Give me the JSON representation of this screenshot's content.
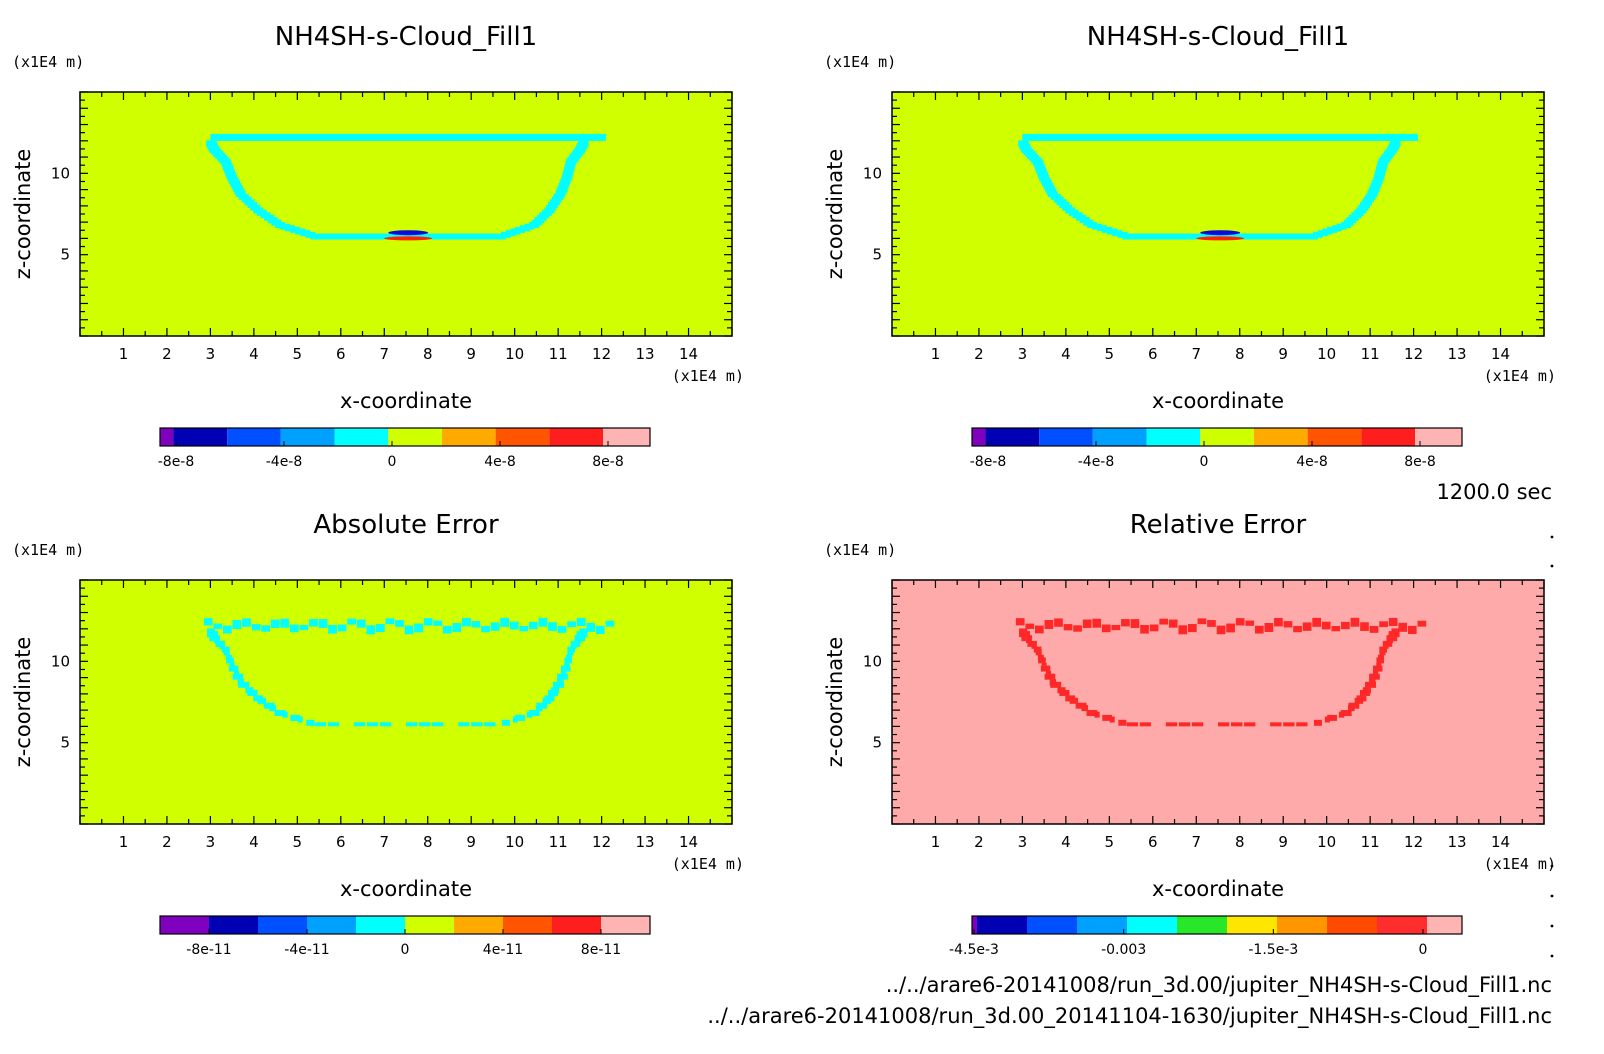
{
  "colors": {
    "field_zero": "#d0ff00",
    "ring": "#00ffff",
    "relative_bg": "#ffaaaa",
    "relative_ring": "#ff2828",
    "neg_core": "#0a0ad8",
    "pos_core": "#ff2200"
  },
  "footer": {
    "time": "1200.0 sec",
    "file1": "../../arare6-20141008/run_3d.00/jupiter_NH4SH-s-Cloud_Fill1.nc",
    "file2": "../../arare6-20141008/run_3d.00_20141104-1630/jupiter_NH4SH-s-Cloud_Fill1.nc"
  },
  "chart_data": [
    {
      "type": "heatmap",
      "title": "NH4SH-s-Cloud_Fill1",
      "xlabel": "x-coordinate",
      "ylabel": "z-coordinate",
      "x_unit": "(x1E4 m)",
      "z_unit": "(x1E4 m)",
      "xlim": [
        0,
        15
      ],
      "ylim": [
        0,
        15
      ],
      "x_ticks": [
        1,
        2,
        3,
        4,
        5,
        6,
        7,
        8,
        9,
        10,
        11,
        12,
        13,
        14
      ],
      "y_ticks": [
        5,
        10
      ],
      "background_value": 0,
      "feature": "anvil-shaped cloud outline between x=3 and x=12, z=6.2 to z=12.3, with small negative/positive pair near x=7.5, z=6",
      "colorbar": {
        "colors": [
          "#8000c0",
          "#0000b4",
          "#0050ff",
          "#00a0ff",
          "#00ffff",
          "#d0ff00",
          "#ffaa00",
          "#ff5500",
          "#ff1e1e",
          "#ffb4b4"
        ],
        "widths": [
          1,
          4,
          4,
          4,
          4,
          4,
          4,
          4,
          4,
          3.5
        ],
        "tick_labels": [
          "-8e-8",
          "-4e-8",
          "0",
          "4e-8",
          "8e-8"
        ],
        "tick_positions": [
          -8e-08,
          -4e-08,
          0,
          4e-08,
          8e-08
        ]
      }
    },
    {
      "type": "heatmap",
      "title": "NH4SH-s-Cloud_Fill1",
      "xlabel": "x-coordinate",
      "ylabel": "z-coordinate",
      "x_unit": "(x1E4 m)",
      "z_unit": "(x1E4 m)",
      "xlim": [
        0,
        15
      ],
      "ylim": [
        0,
        15
      ],
      "x_ticks": [
        1,
        2,
        3,
        4,
        5,
        6,
        7,
        8,
        9,
        10,
        11,
        12,
        13,
        14
      ],
      "y_ticks": [
        5,
        10
      ],
      "background_value": 0,
      "feature": "identical to the first panel",
      "colorbar": {
        "colors": [
          "#8000c0",
          "#0000b4",
          "#0050ff",
          "#00a0ff",
          "#00ffff",
          "#d0ff00",
          "#ffaa00",
          "#ff5500",
          "#ff1e1e",
          "#ffb4b4"
        ],
        "widths": [
          1,
          4,
          4,
          4,
          4,
          4,
          4,
          4,
          4,
          3.5
        ],
        "tick_labels": [
          "-8e-8",
          "-4e-8",
          "0",
          "4e-8",
          "8e-8"
        ],
        "tick_positions": [
          -8e-08,
          -4e-08,
          0,
          4e-08,
          8e-08
        ]
      }
    },
    {
      "type": "heatmap",
      "title": "Absolute Error",
      "xlabel": "x-coordinate",
      "ylabel": "z-coordinate",
      "x_unit": "(x1E4 m)",
      "z_unit": "(x1E4 m)",
      "xlim": [
        0,
        15
      ],
      "ylim": [
        0,
        15
      ],
      "x_ticks": [
        1,
        2,
        3,
        4,
        5,
        6,
        7,
        8,
        9,
        10,
        11,
        12,
        13,
        14
      ],
      "y_ticks": [
        5,
        10
      ],
      "background_value": 0,
      "feature": "patchy cloud outline of slightly negative error",
      "colorbar": {
        "colors": [
          "#8000c0",
          "#0000b4",
          "#0050ff",
          "#00a0ff",
          "#00ffff",
          "#d0ff00",
          "#ffaa00",
          "#ff5500",
          "#ff1e1e",
          "#ffb4b4"
        ],
        "widths": [
          1,
          1,
          1,
          1,
          1,
          1,
          1,
          1,
          1,
          1
        ],
        "tick_labels": [
          "-8e-11",
          "-4e-11",
          "0",
          "4e-11",
          "8e-11"
        ],
        "tick_positions": [
          -8e-11,
          -4e-11,
          0,
          4e-11,
          8e-11
        ]
      }
    },
    {
      "type": "heatmap",
      "title": "Relative Error",
      "xlabel": "x-coordinate",
      "ylabel": "z-coordinate",
      "x_unit": "(x1E4 m)",
      "z_unit": "(x1E4 m)",
      "xlim": [
        0,
        15
      ],
      "ylim": [
        0,
        15
      ],
      "x_ticks": [
        1,
        2,
        3,
        4,
        5,
        6,
        7,
        8,
        9,
        10,
        11,
        12,
        13,
        14
      ],
      "y_ticks": [
        5,
        10
      ],
      "background_value": 0,
      "feature": "patchy cloud outline of negative relative error",
      "colorbar": {
        "colors": [
          "#8000c0",
          "#0000b4",
          "#0050ff",
          "#00a0ff",
          "#00ffff",
          "#28e628",
          "#ffe600",
          "#ff9600",
          "#ff4b00",
          "#ff2d2d",
          "#ffb4b4"
        ],
        "widths": [
          0.1,
          1,
          1,
          1,
          1,
          1,
          1,
          1,
          1,
          1,
          0.7
        ],
        "tick_labels": [
          "-4.5e-3",
          "-0.003",
          "-1.5e-3",
          "0"
        ],
        "tick_positions": [
          -0.0045,
          -0.003,
          -0.0015,
          0
        ]
      }
    }
  ]
}
